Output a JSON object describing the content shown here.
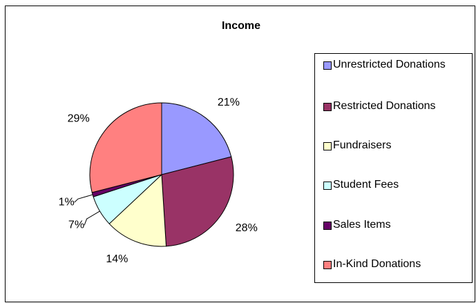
{
  "chart_data": {
    "type": "pie",
    "title": "Income",
    "categories": [
      "Unrestricted Donations",
      "Restricted Donations",
      "Fundraisers",
      "Student Fees",
      "Sales Items",
      "In-Kind Donations"
    ],
    "values": [
      21,
      28,
      14,
      7,
      1,
      29
    ],
    "value_labels": [
      "21%",
      "28%",
      "14%",
      "7%",
      "1%",
      "29%"
    ],
    "colors": [
      "#9999FF",
      "#993366",
      "#FFFFCC",
      "#CCFFFF",
      "#660066",
      "#FF8080"
    ],
    "legend": "right"
  }
}
